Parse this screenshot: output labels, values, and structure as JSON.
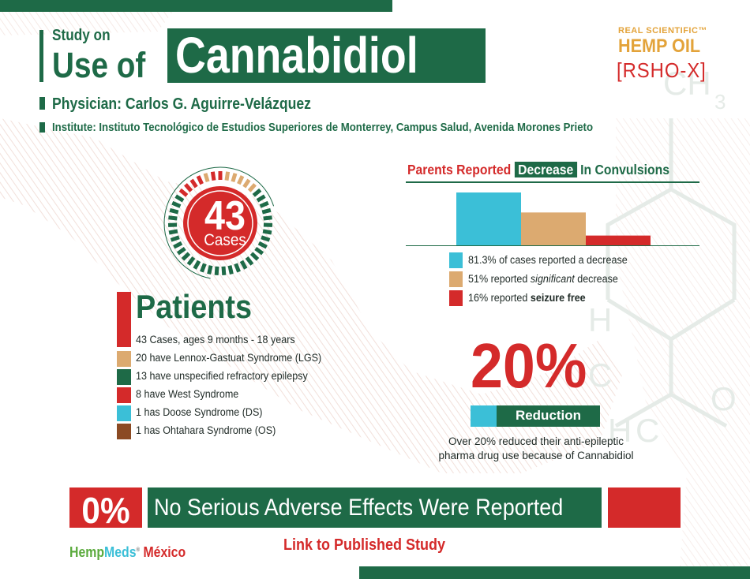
{
  "header": {
    "title_small": "Study on",
    "title_medium": "Use of",
    "title_big": "Cannabidiol",
    "physician": "Physician: Carlos G. Aguirre-Velázquez",
    "institute": "Institute: Instituto Tecnológico de Estudios Superiores de Monterrey, Campus Salud, Avenida Morones Prieto"
  },
  "brand": {
    "line1": "REAL SCIENTIFIC™",
    "line2": "HEMP OIL",
    "line3": "[RSHO-X]"
  },
  "cases": {
    "number": "43",
    "label": "Cases"
  },
  "patients": {
    "title": "Patients",
    "items": [
      {
        "text": "43 Cases, ages 9 months - 18 years",
        "color": "#d42a2a"
      },
      {
        "text": "20 have Lennox-Gastuat Syndrome (LGS)",
        "color": "#dcaa70"
      },
      {
        "text": "13 have unspecified refractory epilepsy",
        "color": "#1e6a47"
      },
      {
        "text": "8 have West Syndrome",
        "color": "#d42a2a"
      },
      {
        "text": "1 has Doose Syndrome (DS)",
        "color": "#3bbfd7"
      },
      {
        "text": "1 has Ohtahara Syndrome (OS)",
        "color": "#8b4a23"
      }
    ]
  },
  "chart_data": {
    "type": "bar",
    "title_parts": [
      "Parents Reported",
      "Decrease",
      "In Convulsions"
    ],
    "categories": [
      "81.3% of cases reported a decrease",
      "51% reported significant decrease",
      "16% reported seizure free"
    ],
    "values": [
      81.3,
      51,
      16
    ],
    "unit": "%",
    "ylim": [
      0,
      100
    ],
    "colors": [
      "#3bbfd7",
      "#dcaa70",
      "#d42a2a"
    ],
    "legend": [
      {
        "pre": "81.3% of cases reported a decrease",
        "em": "",
        "post": ""
      },
      {
        "pre": "51% reported ",
        "em": "significant",
        "post": " decrease"
      },
      {
        "pre": "16% reported ",
        "em": "",
        "post": "seizure free"
      }
    ],
    "grid": false,
    "legend_placement": "bottom"
  },
  "reduction": {
    "value": "20%",
    "label": "Reduction",
    "note": "Over 20% reduced their anti-epileptic pharma drug use because of Cannabidiol"
  },
  "adverse": {
    "value": "0%",
    "text": "No Serious Adverse Effects Were Reported"
  },
  "footer": {
    "logo_a": "Hemp",
    "logo_b": "Meds",
    "logo_tm": "®",
    "logo_c": "México",
    "link": "Link to Published Study"
  },
  "colors": {
    "green": "#1e6a47",
    "red": "#d42a2a",
    "tan": "#dcaa70",
    "cyan": "#3bbfd7",
    "brown": "#8b4a23",
    "gold": "#e3a33a"
  }
}
